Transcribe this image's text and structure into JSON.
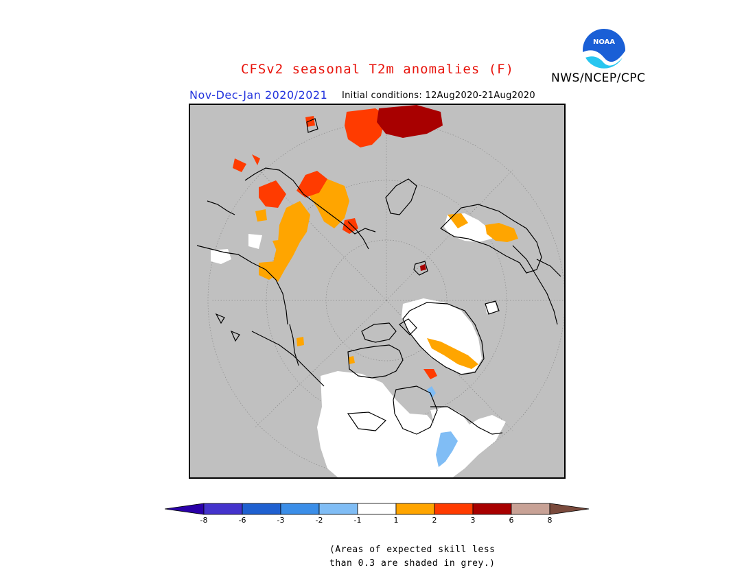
{
  "header": {
    "title": "CFSv2 seasonal T2m anomalies (F)",
    "agency": "NWS/NCEP/CPC",
    "period": "Nov-Dec-Jan 2020/2021",
    "initial_conditions": "Initial conditions: 12Aug2020-21Aug2020"
  },
  "logo": {
    "text": "NOAA",
    "icon": "noaa-logo-icon"
  },
  "colorbar": {
    "ticks": [
      "-8",
      "-6",
      "-3",
      "-2",
      "-1",
      "1",
      "2",
      "3",
      "6",
      "8"
    ],
    "colors": [
      "#2a00a8",
      "#4433cc",
      "#1f60d0",
      "#3b8ee8",
      "#80bdf5",
      "#ffffff",
      "#ffa500",
      "#ff3b00",
      "#a80000",
      "#c8a296",
      "#7a4a3c"
    ]
  },
  "footnote": {
    "line1": "(Areas of expected skill less",
    "line2": "than 0.3 are shaded in grey.)"
  },
  "legend_colors": {
    "no_skill": "#c0c0c0",
    "warm1": "#ffa500",
    "warm2": "#ff3b00",
    "warm3": "#a80000",
    "neutral": "#ffffff",
    "cool1": "#80bdf5"
  }
}
